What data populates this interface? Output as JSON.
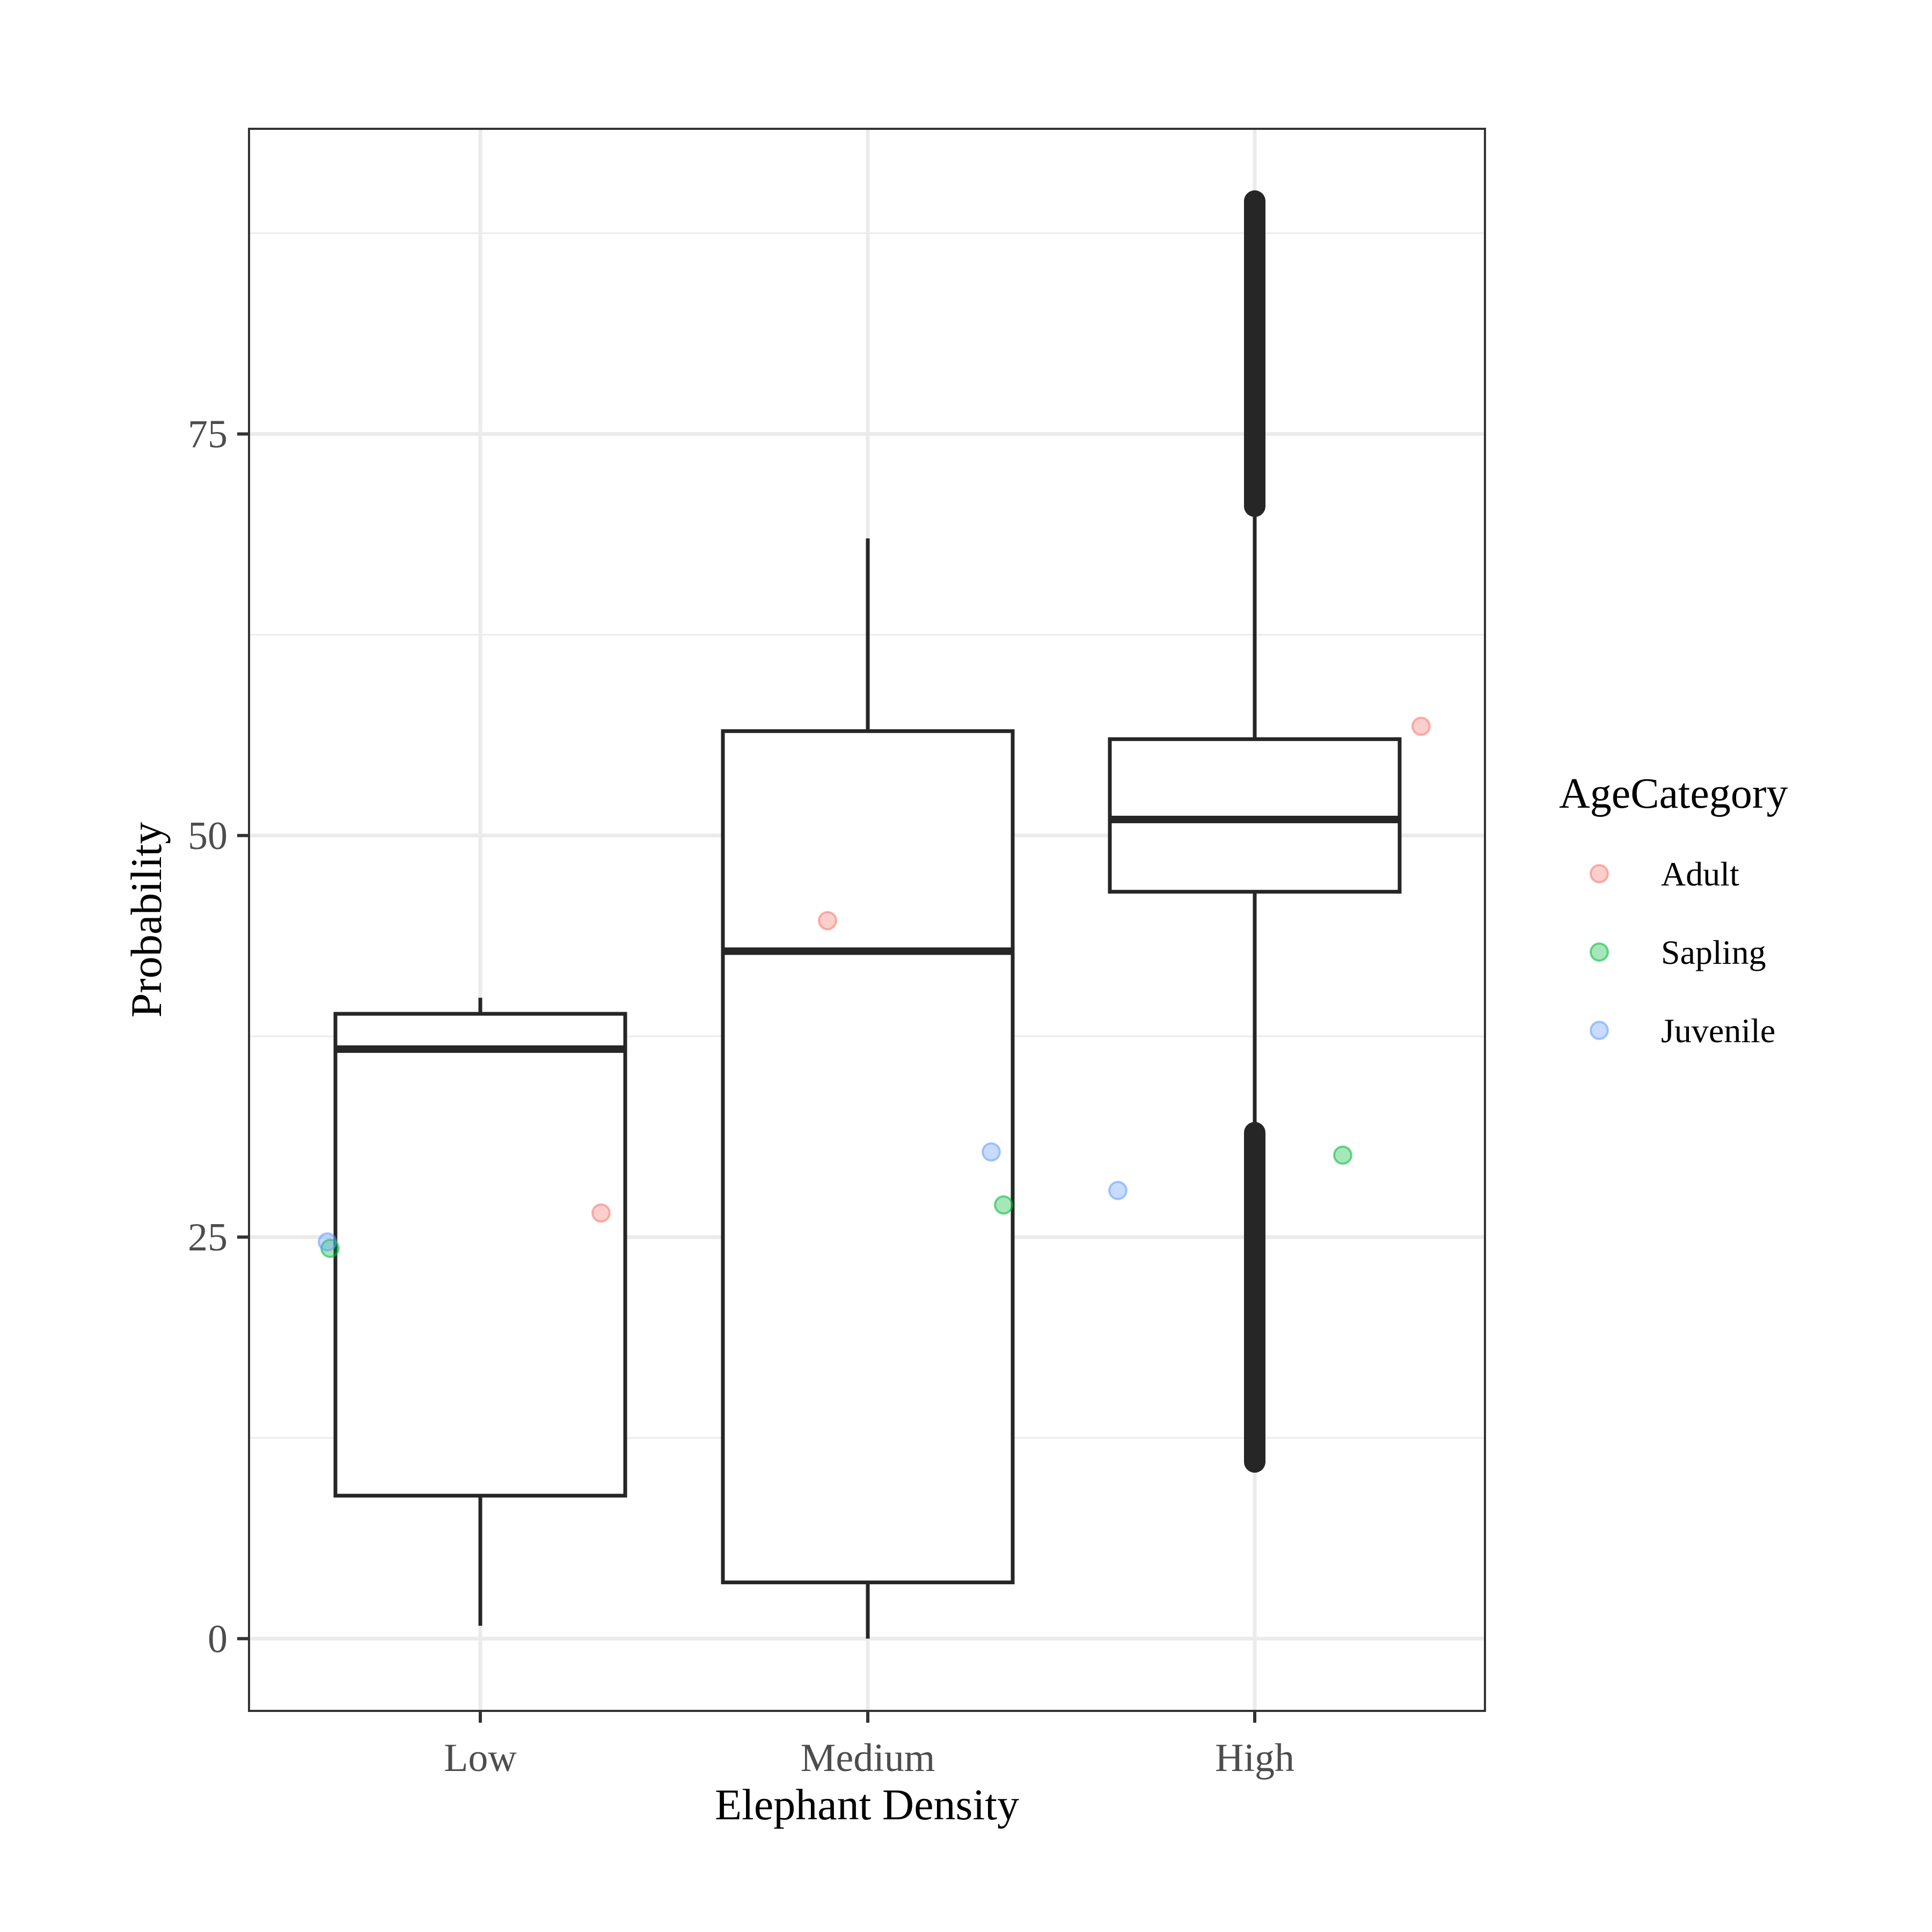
{
  "chart_data": {
    "type": "boxplot",
    "title": "",
    "xlabel": "Elephant Density",
    "ylabel": "Probability",
    "categories": [
      "Low",
      "Medium",
      "High"
    ],
    "ylim": [
      -4.5,
      94
    ],
    "yticks": [
      0,
      25,
      50,
      75
    ],
    "grid": true,
    "boxes": [
      {
        "category": "Low",
        "whisker_low": 0.8,
        "q1": 8.9,
        "median": 36.7,
        "q3": 38.9,
        "whisker_high": 39.9
      },
      {
        "category": "Medium",
        "whisker_low": 0.0,
        "q1": 3.5,
        "median": 42.8,
        "q3": 56.5,
        "whisker_high": 68.5
      },
      {
        "category": "High",
        "whisker_low": 32.0,
        "q1": 46.5,
        "median": 51.0,
        "q3": 56.0,
        "whisker_high": 70.0,
        "outlier_bands": [
          {
            "from": 70.5,
            "to": 89.5
          },
          {
            "from": 11.0,
            "to": 31.5
          }
        ]
      }
    ],
    "series": [
      {
        "name": "Adult",
        "color": "#F8766D",
        "points": [
          {
            "x": "Low",
            "y": 26.5
          },
          {
            "x": "Medium",
            "y": 44.7
          },
          {
            "x": "High",
            "y": 56.8
          }
        ]
      },
      {
        "name": "Sapling",
        "color": "#00BA38",
        "points": [
          {
            "x": "Low",
            "y": 24.3
          },
          {
            "x": "Medium",
            "y": 27.0
          },
          {
            "x": "High",
            "y": 30.1
          }
        ]
      },
      {
        "name": "Juvenile",
        "color": "#619CFF",
        "points": [
          {
            "x": "Low",
            "y": 24.7
          },
          {
            "x": "Medium",
            "y": 30.3
          },
          {
            "x": "High",
            "y": 27.9
          }
        ]
      }
    ],
    "legend": {
      "title": "AgeCategory",
      "position": "right"
    }
  }
}
